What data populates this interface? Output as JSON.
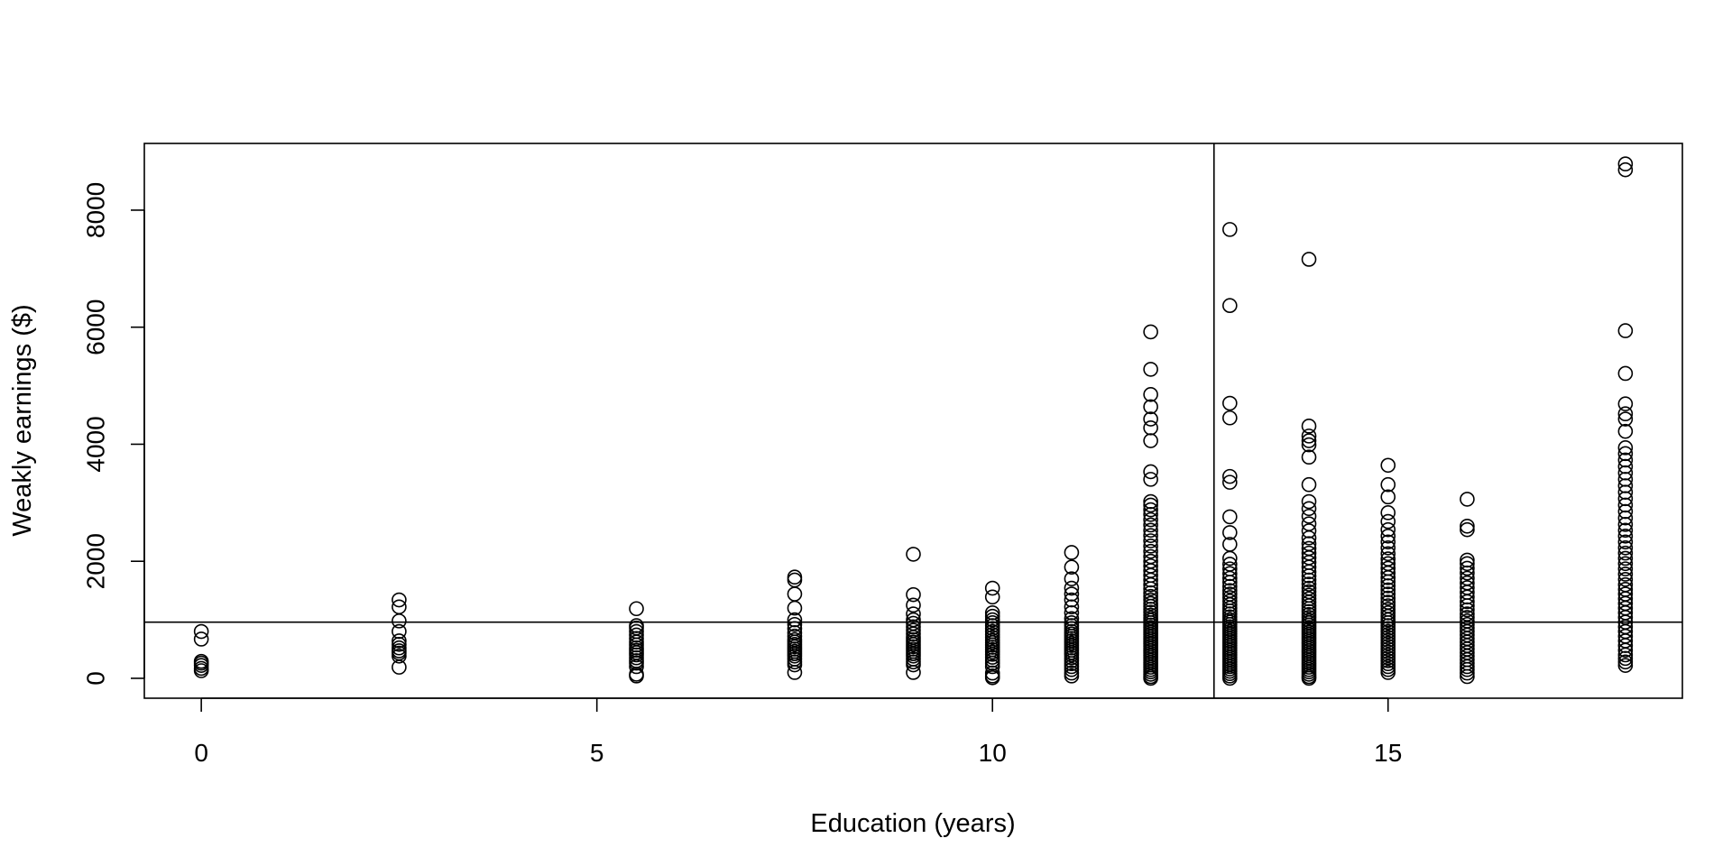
{
  "chart_data": {
    "type": "scatter",
    "title": "",
    "xlabel": "Education (years)",
    "ylabel": "Weakly earnings ($)",
    "xlim": [
      -0.72,
      18.72
    ],
    "ylim": [
      -340,
      9140
    ],
    "xticks": [
      0,
      5,
      10,
      15
    ],
    "yticks": [
      0,
      2000,
      4000,
      6000,
      8000
    ],
    "grid": false,
    "legend": "none",
    "marker": "open-circle",
    "reference_lines": {
      "vertical_x": 12.8,
      "horizontal_y": 960
    },
    "series": [
      {
        "x": 0,
        "y": [
          130,
          170,
          220,
          260,
          290,
          670,
          800
        ]
      },
      {
        "x": 2.5,
        "y": [
          190,
          380,
          430,
          470,
          520,
          580,
          640,
          800,
          980,
          1220,
          1340
        ]
      },
      {
        "x": 5.5,
        "y": [
          40,
          70,
          200,
          260,
          300,
          350,
          400,
          440,
          480,
          520,
          570,
          620,
          680,
          740,
          800,
          860,
          900,
          1190
        ]
      },
      {
        "x": 7.5,
        "y": [
          100,
          230,
          280,
          330,
          380,
          420,
          460,
          500,
          540,
          580,
          620,
          660,
          720,
          780,
          850,
          920,
          1000,
          1200,
          1440,
          1680,
          1730
        ]
      },
      {
        "x": 9,
        "y": [
          100,
          230,
          280,
          330,
          380,
          420,
          460,
          500,
          540,
          580,
          620,
          660,
          700,
          760,
          820,
          880,
          940,
          1000,
          1100,
          1250,
          1430,
          2120
        ]
      },
      {
        "x": 10,
        "y": [
          10,
          40,
          90,
          200,
          260,
          310,
          360,
          410,
          450,
          490,
          530,
          570,
          610,
          650,
          700,
          750,
          800,
          850,
          900,
          950,
          1000,
          1060,
          1120,
          1390,
          1540
        ]
      },
      {
        "x": 11,
        "y": [
          40,
          90,
          150,
          200,
          250,
          300,
          350,
          400,
          440,
          480,
          520,
          560,
          600,
          640,
          680,
          720,
          760,
          800,
          850,
          900,
          950,
          1020,
          1120,
          1220,
          1340,
          1440,
          1540,
          1700,
          1900,
          2150
        ]
      },
      {
        "x": 12,
        "y": [
          0,
          30,
          70,
          110,
          150,
          190,
          230,
          270,
          310,
          350,
          390,
          430,
          470,
          510,
          550,
          590,
          630,
          670,
          710,
          750,
          790,
          830,
          870,
          910,
          950,
          990,
          1030,
          1080,
          1130,
          1180,
          1230,
          1280,
          1340,
          1400,
          1460,
          1530,
          1600,
          1680,
          1760,
          1840,
          1920,
          2000,
          2080,
          2170,
          2260,
          2350,
          2440,
          2530,
          2620,
          2710,
          2800,
          2880,
          2960,
          3020,
          3400,
          3530,
          4060,
          4280,
          4430,
          4640,
          4850,
          5280,
          5920
        ]
      },
      {
        "x": 13,
        "y": [
          0,
          40,
          80,
          120,
          160,
          200,
          240,
          280,
          320,
          360,
          400,
          440,
          480,
          520,
          560,
          600,
          640,
          680,
          720,
          760,
          800,
          840,
          880,
          920,
          960,
          1000,
          1050,
          1100,
          1150,
          1200,
          1260,
          1320,
          1380,
          1440,
          1500,
          1570,
          1640,
          1710,
          1790,
          1870,
          1950,
          2050,
          2290,
          2490,
          2760,
          3350,
          3450,
          4450,
          4700,
          6370,
          7670
        ]
      },
      {
        "x": 14,
        "y": [
          0,
          30,
          70,
          110,
          150,
          190,
          230,
          270,
          310,
          350,
          390,
          430,
          470,
          510,
          550,
          590,
          630,
          670,
          710,
          750,
          790,
          830,
          870,
          910,
          950,
          990,
          1040,
          1090,
          1140,
          1190,
          1240,
          1300,
          1360,
          1420,
          1480,
          1540,
          1610,
          1680,
          1750,
          1820,
          1900,
          1980,
          2060,
          2140,
          2220,
          2300,
          2400,
          2520,
          2640,
          2770,
          2900,
          3020,
          3310,
          3780,
          3990,
          4060,
          4140,
          4310,
          7160
        ]
      },
      {
        "x": 15,
        "y": [
          100,
          150,
          200,
          250,
          300,
          350,
          400,
          450,
          500,
          550,
          600,
          650,
          700,
          750,
          800,
          850,
          900,
          950,
          1000,
          1060,
          1120,
          1180,
          1240,
          1300,
          1370,
          1440,
          1510,
          1580,
          1650,
          1720,
          1800,
          1880,
          1960,
          2040,
          2130,
          2230,
          2330,
          2430,
          2540,
          2680,
          2830,
          3100,
          3310,
          3640
        ]
      },
      {
        "x": 16,
        "y": [
          30,
          90,
          150,
          200,
          260,
          320,
          380,
          440,
          500,
          560,
          620,
          680,
          740,
          800,
          860,
          920,
          980,
          1040,
          1100,
          1170,
          1240,
          1310,
          1390,
          1470,
          1550,
          1630,
          1710,
          1800,
          1880,
          1960,
          2020,
          2540,
          2600,
          3060
        ]
      },
      {
        "x": 18,
        "y": [
          220,
          280,
          340,
          400,
          480,
          560,
          640,
          720,
          800,
          880,
          960,
          1040,
          1120,
          1200,
          1280,
          1360,
          1440,
          1520,
          1600,
          1690,
          1780,
          1870,
          1960,
          2050,
          2140,
          2230,
          2330,
          2430,
          2530,
          2630,
          2740,
          2850,
          2960,
          3070,
          3180,
          3290,
          3400,
          3510,
          3620,
          3730,
          3840,
          3940,
          4220,
          4430,
          4520,
          4690,
          5210,
          5940,
          8690,
          8790
        ]
      }
    ]
  }
}
